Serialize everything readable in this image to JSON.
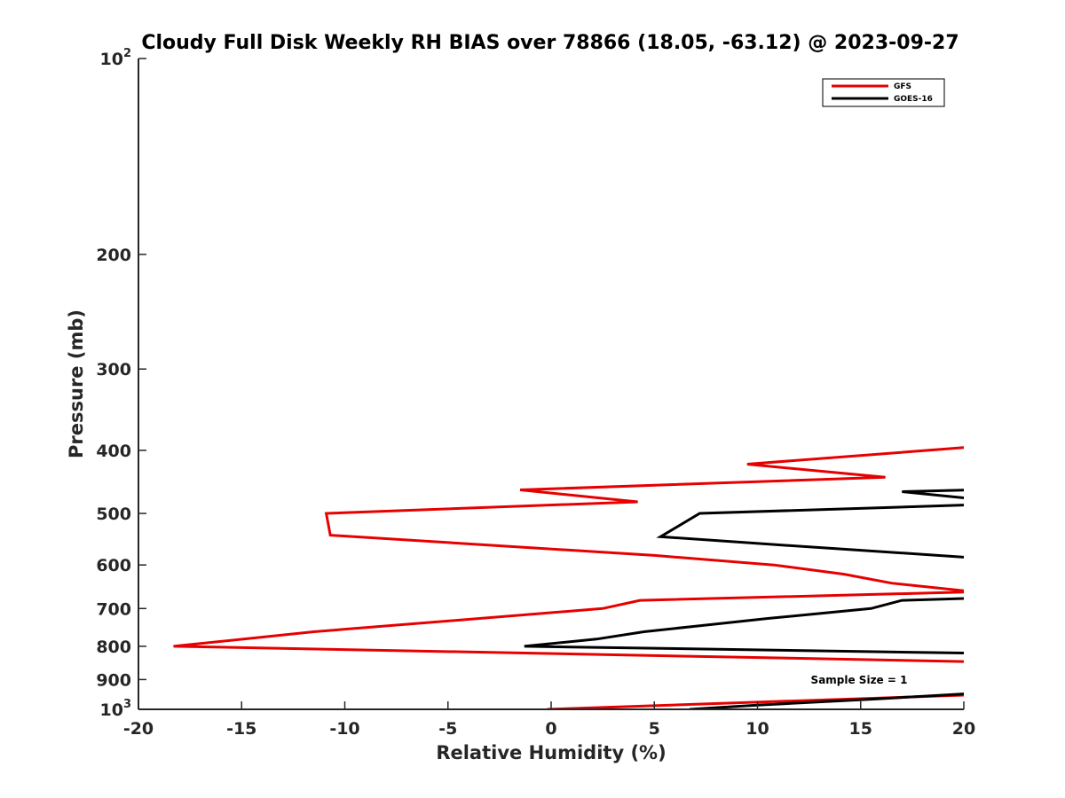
{
  "chart_data": {
    "type": "line",
    "title": "Cloudy Full Disk Weekly RH BIAS over 78866 (18.05, -63.12) @ 2023-09-27",
    "xlabel": "Relative Humidity (%)",
    "ylabel": "Pressure (mb)",
    "xlim": [
      -20,
      20
    ],
    "ylim": [
      100,
      1000
    ],
    "yscale": "log",
    "y_reversed": true,
    "x_ticks": [
      -20,
      -15,
      -10,
      -5,
      0,
      5,
      10,
      15,
      20
    ],
    "x_tick_labels": [
      "-20",
      "-15",
      "-10",
      "-5",
      "0",
      "5",
      "10",
      "15",
      "20"
    ],
    "y_ticks": [
      100,
      200,
      300,
      400,
      500,
      600,
      700,
      800,
      900,
      1000
    ],
    "y_tick_labels": [
      {
        "base": "10",
        "exp": "2"
      },
      {
        "base": "200",
        "exp": ""
      },
      {
        "base": "300",
        "exp": ""
      },
      {
        "base": "400",
        "exp": ""
      },
      {
        "base": "500",
        "exp": ""
      },
      {
        "base": "600",
        "exp": ""
      },
      {
        "base": "700",
        "exp": ""
      },
      {
        "base": "800",
        "exp": ""
      },
      {
        "base": "900",
        "exp": ""
      },
      {
        "base": "10",
        "exp": "3"
      }
    ],
    "grid": false,
    "legend_position": "top-right",
    "annotation": "Sample Size = 1",
    "series": [
      {
        "name": "GFS",
        "color": "#e60000",
        "points": [
          [
            20.5,
            395
          ],
          [
            9.5,
            420
          ],
          [
            16.2,
            440
          ],
          [
            -1.5,
            460
          ],
          [
            4.2,
            480
          ],
          [
            -10.9,
            500
          ],
          [
            -10.7,
            540
          ],
          [
            5.0,
            580
          ],
          [
            10.8,
            600
          ],
          [
            14.2,
            620
          ],
          [
            16.5,
            640
          ],
          [
            20.5,
            660
          ],
          [
            4.3,
            680
          ],
          [
            2.5,
            700
          ],
          [
            -11.5,
            760
          ],
          [
            -18.3,
            800
          ],
          [
            20.5,
            845
          ]
        ]
      },
      {
        "name": "GFS",
        "color": "#e60000",
        "points": [
          [
            -0.2,
            1000
          ],
          [
            20.5,
            950
          ]
        ]
      },
      {
        "name": "GOES-16",
        "color": "#000000",
        "points": [
          [
            20.5,
            460
          ],
          [
            17.0,
            463
          ],
          [
            20.5,
            475
          ],
          [
            20.5,
            485
          ],
          [
            7.2,
            500
          ],
          [
            5.3,
            543
          ],
          [
            11.5,
            560
          ],
          [
            20.5,
            585
          ]
        ]
      },
      {
        "name": "GOES-16",
        "color": "#000000",
        "points": [
          [
            20.5,
            675
          ],
          [
            17.0,
            680
          ],
          [
            15.5,
            700
          ],
          [
            10.5,
            725
          ],
          [
            7.0,
            745
          ],
          [
            4.5,
            760
          ],
          [
            2.2,
            780
          ],
          [
            -1.3,
            800
          ],
          [
            20.5,
            820
          ]
        ]
      },
      {
        "name": "GOES-16",
        "color": "#000000",
        "points": [
          [
            6.7,
            1000
          ],
          [
            10.0,
            985
          ],
          [
            15.5,
            965
          ],
          [
            20.5,
            945
          ]
        ]
      }
    ],
    "legend": [
      {
        "name": "GFS",
        "color": "#e60000"
      },
      {
        "name": "GOES-16",
        "color": "#000000"
      }
    ]
  }
}
